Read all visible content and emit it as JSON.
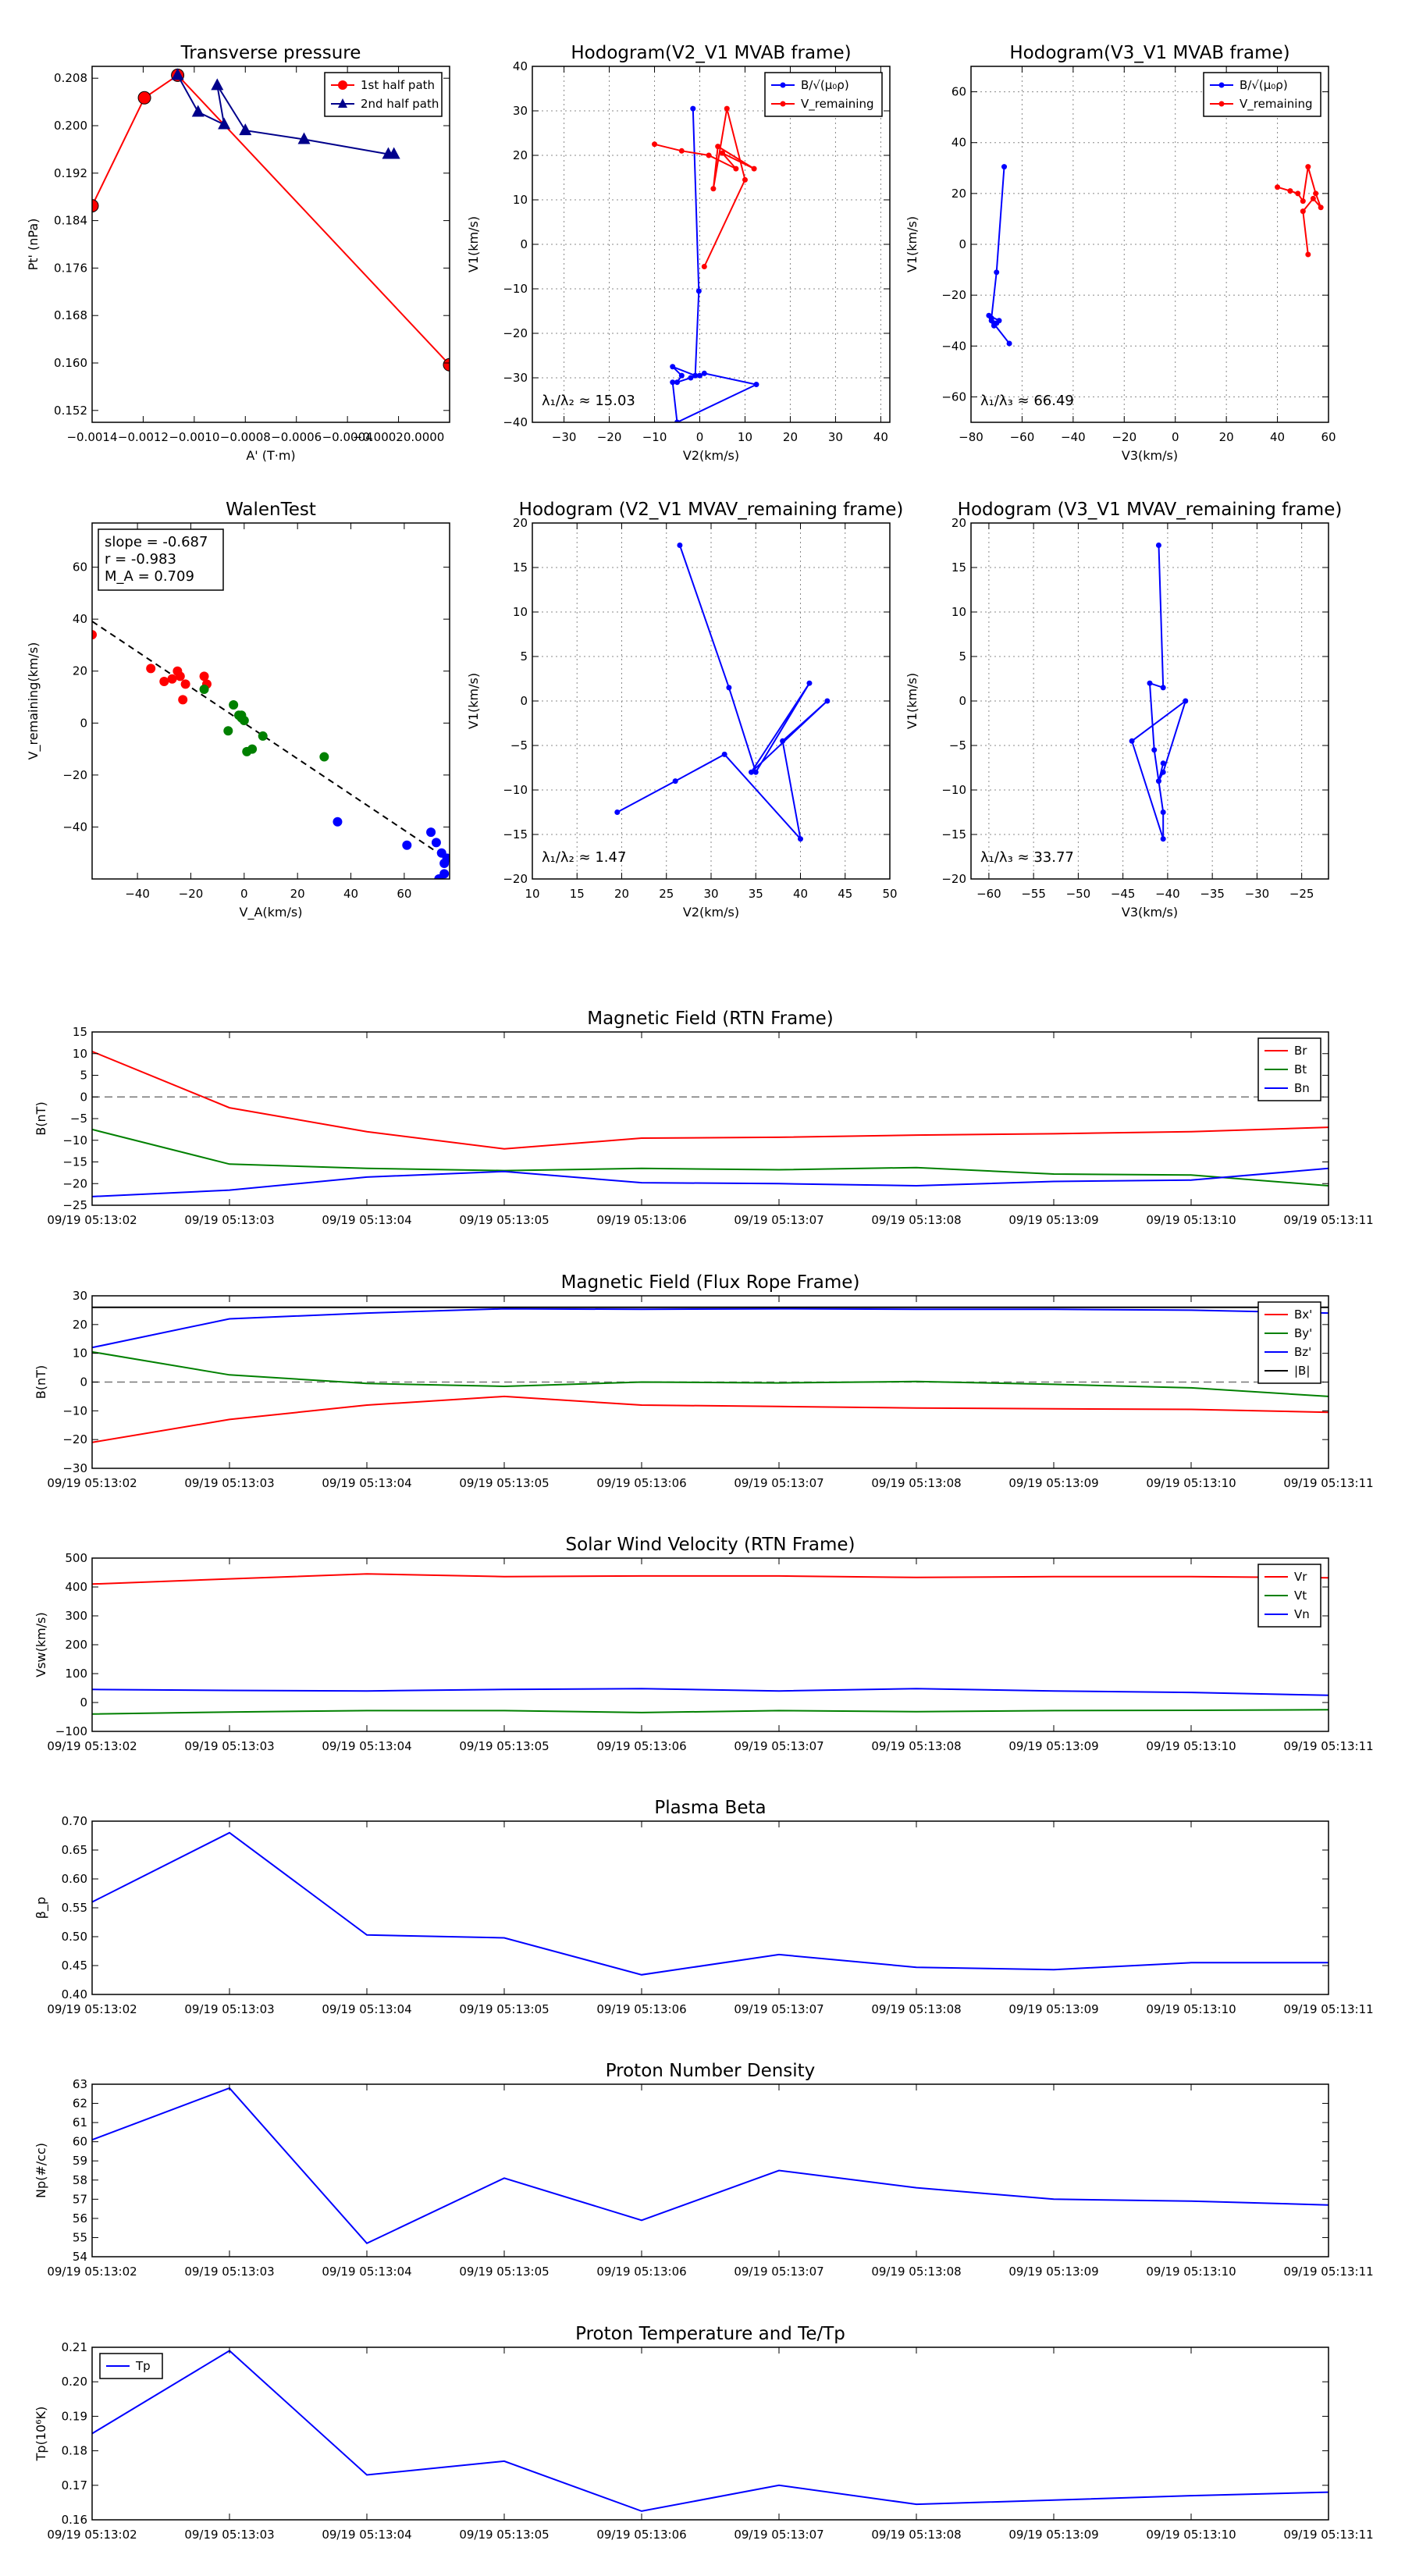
{
  "times": [
    "09/19 05:13:02",
    "09/19 05:13:03",
    "09/19 05:13:04",
    "09/19 05:13:05",
    "09/19 05:13:06",
    "09/19 05:13:07",
    "09/19 05:13:08",
    "09/19 05:13:09",
    "09/19 05:13:10",
    "09/19 05:13:11"
  ],
  "colors": {
    "red": "#ff0000",
    "green": "#008000",
    "blue": "#0000ff",
    "black": "#000000",
    "darkblue": "#00008b",
    "darkred": "#8b0000",
    "grid": "#888888"
  },
  "chart_data": [
    {
      "id": "transverse-pressure",
      "type": "line",
      "title": "Transverse pressure",
      "xlabel": "A' (T·m)",
      "ylabel": "Pt' (nPa)",
      "xlim": [
        -0.0014,
        0.0
      ],
      "ylim": [
        0.15,
        0.21
      ],
      "xticks": [
        -0.0014,
        -0.0012,
        -0.001,
        -0.0008,
        -0.0006,
        -0.0004,
        -0.0002,
        0.0
      ],
      "xtick_labels": [
        "−0.0014",
        "−0.0012",
        "−0.0010",
        "−0.0008",
        "−0.0006",
        "−0.0004",
        "−0.00020.0000",
        ""
      ],
      "yticks": [
        0.152,
        0.16,
        0.168,
        0.176,
        0.184,
        0.192,
        0.2,
        0.208
      ],
      "ytick_labels": [
        "0.152",
        "0.160",
        "0.168",
        "0.176",
        "0.184",
        "0.192",
        "0.200",
        "0.208"
      ],
      "legend": {
        "position": "top-right",
        "entries": [
          "1st half path",
          "2nd half path"
        ]
      },
      "series": [
        {
          "name": "1st half path",
          "color": "red",
          "marker": "circle",
          "x": [
            -0.0014,
            -0.001195,
            -0.001065,
            0.0
          ],
          "y": [
            0.1865,
            0.2047,
            0.2085,
            0.1597
          ]
        },
        {
          "name": "2nd half path",
          "color": "darkblue",
          "marker": "triangle",
          "x": [
            -0.001065,
            -0.000985,
            -0.000883,
            -0.00091,
            -0.0008,
            -0.00057,
            -0.00024,
            -0.000218
          ],
          "y": [
            0.2085,
            0.2023,
            0.2002,
            0.2068,
            0.1992,
            0.1977,
            0.1952,
            0.1952
          ]
        }
      ]
    },
    {
      "id": "hodogram-v2-v1-mvab",
      "type": "line",
      "title": "Hodogram(V2_V1 MVAB frame)",
      "xlabel": "V2(km/s)",
      "ylabel": "V1(km/s)",
      "xlim": [
        -37,
        42
      ],
      "ylim": [
        -40,
        40
      ],
      "xticks": [
        -30,
        -20,
        -10,
        0,
        10,
        20,
        30,
        40
      ],
      "xtick_labels": [
        "−30",
        "−20",
        "−10",
        "0",
        "10",
        "20",
        "30",
        "40"
      ],
      "yticks": [
        -40,
        -30,
        -20,
        -10,
        0,
        10,
        20,
        30,
        40
      ],
      "ytick_labels": [
        "−40",
        "−30",
        "−20",
        "−10",
        "0",
        "10",
        "20",
        "30",
        "40"
      ],
      "grid": true,
      "annotation": "λ₁/λ₂ ≈ 15.03",
      "legend": {
        "position": "top-right",
        "entries": [
          "B/√(μ₀ρ)",
          "V_remaining"
        ]
      },
      "series": [
        {
          "name": "B/√(μ₀ρ)",
          "color": "blue",
          "x": [
            -1.5,
            -0.2,
            -1,
            -6,
            -4,
            -5,
            -2,
            0,
            1,
            12.5,
            -5,
            -6
          ],
          "y": [
            30.5,
            -10.5,
            -29.5,
            -27.5,
            -29.5,
            -31,
            -30,
            -29.5,
            -29,
            -31.5,
            -40,
            -31
          ]
        },
        {
          "name": "V_remaining",
          "color": "red",
          "x": [
            -10,
            -4,
            2,
            8,
            5,
            12,
            4,
            3,
            6,
            10,
            1
          ],
          "y": [
            22.5,
            21,
            20,
            17,
            20.5,
            17,
            22,
            12.5,
            30.5,
            14.5,
            -5
          ]
        }
      ]
    },
    {
      "id": "hodogram-v3-v1-mvab",
      "type": "line",
      "title": "Hodogram(V3_V1 MVAB frame)",
      "xlabel": "V3(km/s)",
      "ylabel": "V1(km/s)",
      "xlim": [
        -80,
        60
      ],
      "ylim": [
        -70,
        70
      ],
      "xticks": [
        -80,
        -60,
        -40,
        -20,
        0,
        20,
        40,
        60
      ],
      "xtick_labels": [
        "−80",
        "−60",
        "−40",
        "−20",
        "0",
        "20",
        "40",
        "60"
      ],
      "yticks": [
        -60,
        -40,
        -20,
        0,
        20,
        40,
        60
      ],
      "ytick_labels": [
        "−60",
        "−40",
        "−20",
        "0",
        "20",
        "40",
        "60"
      ],
      "grid": true,
      "annotation": "λ₁/λ₃ ≈ 66.49",
      "legend": {
        "position": "top-right",
        "entries": [
          "B/√(μ₀ρ)",
          "V_remaining"
        ]
      },
      "series": [
        {
          "name": "B/√(μ₀ρ)",
          "color": "blue",
          "x": [
            -67,
            -70,
            -72,
            -71,
            -73,
            -69,
            -71,
            -70,
            -72,
            -65
          ],
          "y": [
            30.5,
            -11,
            -29,
            -31,
            -28,
            -30,
            -32,
            -31,
            -30,
            -39
          ]
        },
        {
          "name": "V_remaining",
          "color": "red",
          "x": [
            40,
            45,
            48,
            50,
            52,
            55,
            57,
            54,
            50,
            52
          ],
          "y": [
            22.5,
            21,
            20,
            17,
            30.5,
            20,
            14.5,
            18,
            13,
            -4
          ]
        }
      ]
    },
    {
      "id": "walen-test",
      "type": "scatter",
      "title": "WalenTest",
      "xlabel": "V_A(km/s)",
      "ylabel": "V_remaining(km/s)",
      "xlim": [
        -57,
        77
      ],
      "ylim": [
        -60,
        77
      ],
      "xticks": [
        -40,
        -20,
        0,
        20,
        40,
        60
      ],
      "xtick_labels": [
        "−40",
        "−20",
        "0",
        "20",
        "40",
        "60"
      ],
      "yticks": [
        -40,
        -20,
        0,
        20,
        40,
        60
      ],
      "ytick_labels": [
        "−40",
        "−20",
        "0",
        "20",
        "40",
        "60"
      ],
      "annotation": [
        "slope = -0.687",
        "r = -0.983",
        "M_A = 0.709"
      ],
      "fit": {
        "slope": -0.687,
        "intercept": 0.0
      },
      "series": [
        {
          "name": "red",
          "color": "red",
          "x": [
            -57,
            -35,
            -30,
            -27,
            -25,
            -24,
            -22,
            -23,
            -14,
            -15
          ],
          "y": [
            34,
            21,
            16,
            17,
            20,
            18,
            15,
            9,
            15,
            18
          ]
        },
        {
          "name": "green",
          "color": "green",
          "x": [
            -15,
            -6,
            -4,
            -2,
            -1,
            0,
            -1,
            1,
            3,
            7,
            30
          ],
          "y": [
            13,
            -3,
            7,
            3,
            2,
            1,
            3,
            -11,
            -10,
            -5,
            -13
          ]
        },
        {
          "name": "blue",
          "color": "blue",
          "x": [
            35,
            61,
            70,
            72,
            74,
            75,
            75,
            73,
            76
          ],
          "y": [
            -38,
            -47,
            -42,
            -46,
            -50,
            -54,
            -58,
            -60,
            -52
          ]
        }
      ]
    },
    {
      "id": "hodogram-v2-v1-mvav",
      "type": "line",
      "title": "Hodogram (V2_V1 MVAV_remaining frame)",
      "xlabel": "V2(km/s)",
      "ylabel": "V1(km/s)",
      "xlim": [
        10,
        50
      ],
      "ylim": [
        -20,
        20
      ],
      "xticks": [
        10,
        15,
        20,
        25,
        30,
        35,
        40,
        45,
        50
      ],
      "xtick_labels": [
        "10",
        "15",
        "20",
        "25",
        "30",
        "35",
        "40",
        "45",
        "50"
      ],
      "yticks": [
        -20,
        -15,
        -10,
        -5,
        0,
        5,
        10,
        15,
        20
      ],
      "ytick_labels": [
        "−20",
        "−15",
        "−10",
        "−5",
        "0",
        "5",
        "10",
        "15",
        "20"
      ],
      "grid": true,
      "annotation": "λ₁/λ₂ ≈ 1.47",
      "series": [
        {
          "name": "hodogram",
          "color": "blue",
          "x": [
            26.5,
            32,
            35,
            41,
            34.5,
            43,
            38,
            40,
            31.5,
            26,
            19.5
          ],
          "y": [
            17.5,
            1.5,
            -8,
            2,
            -8,
            0,
            -4.5,
            -15.5,
            -6,
            -9,
            -12.5
          ]
        }
      ]
    },
    {
      "id": "hodogram-v3-v1-mvav",
      "type": "line",
      "title": "Hodogram (V3_V1 MVAV_remaining frame)",
      "xlabel": "V3(km/s)",
      "ylabel": "V1(km/s)",
      "xlim": [
        -62,
        -22
      ],
      "ylim": [
        -20,
        20
      ],
      "xticks": [
        -60,
        -55,
        -50,
        -45,
        -40,
        -35,
        -30,
        -25
      ],
      "xtick_labels": [
        "−60",
        "−55",
        "−50",
        "−45",
        "−40",
        "−35",
        "−30",
        "−25"
      ],
      "yticks": [
        -20,
        -15,
        -10,
        -5,
        0,
        5,
        10,
        15,
        20
      ],
      "ytick_labels": [
        "−20",
        "−15",
        "−10",
        "−5",
        "0",
        "5",
        "10",
        "15",
        "20"
      ],
      "grid": true,
      "annotation": "λ₁/λ₃ ≈ 33.77",
      "series": [
        {
          "name": "hodogram",
          "color": "blue",
          "x": [
            -41,
            -40.5,
            -42,
            -41.5,
            -40.5,
            -40.5,
            -44,
            -38,
            -40.5,
            -41,
            -40.5
          ],
          "y": [
            17.5,
            1.5,
            2,
            -5.5,
            -12.5,
            -15.5,
            -4.5,
            0,
            -8,
            -9,
            -7
          ]
        }
      ]
    },
    {
      "id": "magnetic-field-rtn",
      "type": "line",
      "title": "Magnetic Field (RTN Frame)",
      "xlabel": "",
      "ylabel": "B(nT)",
      "ylim": [
        -25,
        15
      ],
      "yticks": [
        -25,
        -20,
        -15,
        -10,
        -5,
        0,
        5,
        10,
        15
      ],
      "ytick_labels": [
        "−25",
        "−20",
        "−15",
        "−10",
        "−5",
        "0",
        "5",
        "10",
        "15"
      ],
      "zero_line": true,
      "legend": {
        "position": "top-right",
        "entries": [
          "Br",
          "Bt",
          "Bn"
        ]
      },
      "series": [
        {
          "name": "Br",
          "color": "red",
          "values": [
            10.5,
            -2.5,
            -8,
            -12,
            -9.5,
            -9.3,
            -8.8,
            -8.5,
            -8,
            -7
          ]
        },
        {
          "name": "Bt",
          "color": "green",
          "values": [
            -7.5,
            -15.5,
            -16.5,
            -17,
            -16.5,
            -16.8,
            -16.3,
            -17.8,
            -18,
            -20.5
          ]
        },
        {
          "name": "Bn",
          "color": "blue",
          "values": [
            -23,
            -21.5,
            -18.5,
            -17.2,
            -19.8,
            -20,
            -20.5,
            -19.5,
            -19.2,
            -16.5
          ]
        }
      ]
    },
    {
      "id": "magnetic-field-fluxrope",
      "type": "line",
      "title": "Magnetic Field (Flux Rope Frame)",
      "xlabel": "",
      "ylabel": "B(nT)",
      "ylim": [
        -30,
        30
      ],
      "yticks": [
        -30,
        -20,
        -10,
        0,
        10,
        20,
        30
      ],
      "ytick_labels": [
        "−30",
        "−20",
        "−10",
        "0",
        "10",
        "20",
        "30"
      ],
      "zero_line": true,
      "legend": {
        "position": "top-right",
        "entries": [
          "Bx'",
          "By'",
          "Bz'",
          "|B|"
        ]
      },
      "series": [
        {
          "name": "Bx'",
          "color": "red",
          "values": [
            -21,
            -13,
            -8,
            -5,
            -8,
            -8.5,
            -9,
            -9.3,
            -9.5,
            -10.5
          ]
        },
        {
          "name": "By'",
          "color": "green",
          "values": [
            10.5,
            2.5,
            -0.5,
            -1.5,
            0,
            -0.3,
            0.2,
            -0.8,
            -2,
            -5
          ]
        },
        {
          "name": "Bz'",
          "color": "blue",
          "values": [
            12,
            22,
            24,
            25.5,
            25.3,
            25.5,
            25.3,
            25.3,
            25,
            24
          ]
        },
        {
          "name": "|B|",
          "color": "black",
          "values": [
            26,
            26,
            26,
            26,
            26,
            26,
            26,
            26,
            26,
            26
          ]
        }
      ]
    },
    {
      "id": "solar-wind-velocity",
      "type": "line",
      "title": "Solar Wind Velocity (RTN Frame)",
      "xlabel": "",
      "ylabel": "Vsw(km/s)",
      "ylim": [
        -100,
        500
      ],
      "yticks": [
        -100,
        0,
        100,
        200,
        300,
        400,
        500
      ],
      "ytick_labels": [
        "−100",
        "0",
        "100",
        "200",
        "300",
        "400",
        "500"
      ],
      "legend": {
        "position": "top-right",
        "entries": [
          "Vr",
          "Vt",
          "Vn"
        ]
      },
      "series": [
        {
          "name": "Vr",
          "color": "red",
          "values": [
            410,
            428,
            445,
            436,
            438,
            438,
            433,
            436,
            436,
            432
          ]
        },
        {
          "name": "Vt",
          "color": "green",
          "values": [
            -40,
            -33,
            -28,
            -28,
            -35,
            -28,
            -32,
            -28,
            -27,
            -25
          ]
        },
        {
          "name": "Vn",
          "color": "blue",
          "values": [
            45,
            42,
            40,
            45,
            48,
            40,
            48,
            40,
            35,
            25
          ]
        }
      ]
    },
    {
      "id": "plasma-beta",
      "type": "line",
      "title": "Plasma Beta",
      "xlabel": "",
      "ylabel": "β_p",
      "ylim": [
        0.4,
        0.7
      ],
      "yticks": [
        0.4,
        0.45,
        0.5,
        0.55,
        0.6,
        0.65,
        0.7
      ],
      "ytick_labels": [
        "0.40",
        "0.45",
        "0.50",
        "0.55",
        "0.60",
        "0.65",
        "0.70"
      ],
      "series": [
        {
          "name": "beta",
          "color": "blue",
          "values": [
            0.56,
            0.68,
            0.503,
            0.498,
            0.434,
            0.469,
            0.447,
            0.443,
            0.455,
            0.455
          ]
        }
      ]
    },
    {
      "id": "proton-density",
      "type": "line",
      "title": "Proton Number Density",
      "xlabel": "",
      "ylabel": "Np(#/cc)",
      "ylim": [
        54,
        63
      ],
      "yticks": [
        54,
        55,
        56,
        57,
        58,
        59,
        60,
        61,
        62,
        63
      ],
      "ytick_labels": [
        "54",
        "55",
        "56",
        "57",
        "58",
        "59",
        "60",
        "61",
        "62",
        "63"
      ],
      "series": [
        {
          "name": "Np",
          "color": "blue",
          "values": [
            60.1,
            62.8,
            54.7,
            58.1,
            55.9,
            58.5,
            57.6,
            57,
            56.9,
            56.7
          ]
        }
      ]
    },
    {
      "id": "proton-temperature",
      "type": "line",
      "title": "Proton Temperature and Te/Tp",
      "xlabel": "",
      "ylabel": "Tp(10⁶K)",
      "ylim": [
        0.16,
        0.21
      ],
      "yticks": [
        0.16,
        0.17,
        0.18,
        0.19,
        0.2,
        0.21
      ],
      "ytick_labels": [
        "0.16",
        "0.17",
        "0.18",
        "0.19",
        "0.20",
        "0.21"
      ],
      "legend": {
        "position": "top-left",
        "entries": [
          "Tp"
        ]
      },
      "series": [
        {
          "name": "Tp",
          "color": "blue",
          "values": [
            0.185,
            0.209,
            0.173,
            0.177,
            0.1625,
            0.17,
            0.1645,
            0.1657,
            0.167,
            0.168
          ]
        }
      ]
    }
  ]
}
